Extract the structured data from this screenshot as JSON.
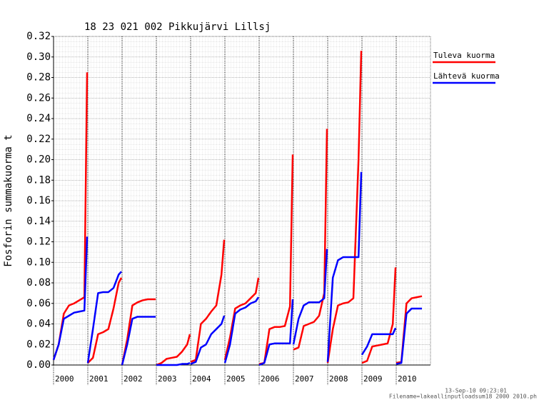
{
  "chart_data": {
    "type": "line",
    "title": "18 23 021 002 Pikkujärvi Lillsj",
    "y_label": "Fosforin summakuorma t",
    "footer": [
      "13-Sep-10 09:23:01",
      "Filename=lakeallinputloadsum18 2000 2010.ph"
    ],
    "legend_position": "right",
    "grid": true,
    "xlim": [
      2000,
      2011
    ],
    "xticks": [
      2000,
      2001,
      2002,
      2003,
      2004,
      2005,
      2006,
      2007,
      2008,
      2009,
      2010
    ],
    "ylim": [
      0,
      0.32
    ],
    "yticks": [
      {
        "value": 0,
        "label": "0.00"
      },
      {
        "value": 0.02,
        "label": "0.02"
      },
      {
        "value": 0.04,
        "label": "0.04"
      },
      {
        "value": 0.06,
        "label": "0.06"
      },
      {
        "value": 0.08,
        "label": "0.08"
      },
      {
        "value": 0.1,
        "label": "0.10"
      },
      {
        "value": 0.12,
        "label": "0.12"
      },
      {
        "value": 0.14,
        "label": "0.14"
      },
      {
        "value": 0.16,
        "label": "0.16"
      },
      {
        "value": 0.18,
        "label": "0.18"
      },
      {
        "value": 0.2,
        "label": "0.20"
      },
      {
        "value": 0.22,
        "label": "0.22"
      },
      {
        "value": 0.24,
        "label": "0.24"
      },
      {
        "value": 0.26,
        "label": "0.26"
      },
      {
        "value": 0.28,
        "label": "0.28"
      },
      {
        "value": 0.3,
        "label": "0.30"
      },
      {
        "value": 0.32,
        "label": "0.32"
      }
    ],
    "x": [
      2000,
      2000.15,
      2000.3,
      2000.45,
      2000.6,
      2000.75,
      2000.9,
      2000.98,
      2000.99,
      2001,
      2001.15,
      2001.3,
      2001.45,
      2001.6,
      2001.75,
      2001.9,
      2001.98,
      2001.99,
      2002,
      2002.15,
      2002.3,
      2002.45,
      2002.6,
      2002.75,
      2002.9,
      2002.98,
      2002.99,
      2003,
      2003.15,
      2003.3,
      2003.45,
      2003.6,
      2003.75,
      2003.9,
      2003.98,
      2003.99,
      2004,
      2004.15,
      2004.3,
      2004.45,
      2004.6,
      2004.75,
      2004.9,
      2004.98,
      2004.99,
      2005,
      2005.15,
      2005.3,
      2005.45,
      2005.6,
      2005.75,
      2005.9,
      2005.98,
      2005.99,
      2006,
      2006.15,
      2006.3,
      2006.45,
      2006.6,
      2006.75,
      2006.9,
      2006.98,
      2006.99,
      2007,
      2007.15,
      2007.3,
      2007.45,
      2007.6,
      2007.75,
      2007.9,
      2007.98,
      2007.99,
      2008,
      2008.15,
      2008.3,
      2008.45,
      2008.6,
      2008.75,
      2008.9,
      2008.98,
      2008.99,
      2009,
      2009.15,
      2009.3,
      2009.45,
      2009.6,
      2009.75,
      2009.9,
      2009.98,
      2009.99,
      2010,
      2010.15,
      2010.3,
      2010.45,
      2010.6,
      2010.75
    ],
    "series": [
      {
        "name": "Tuleva kuorma",
        "color": "#ff0000",
        "values": [
          0.005,
          0.02,
          0.05,
          0.058,
          0.06,
          0.063,
          0.066,
          0.285,
          null,
          0.002,
          0.007,
          0.03,
          0.032,
          0.035,
          0.055,
          0.08,
          0.085,
          null,
          0,
          0.025,
          0.058,
          0.061,
          0.063,
          0.064,
          0.064,
          0.064,
          null,
          0,
          0.002,
          0.006,
          0.007,
          0.008,
          0.013,
          0.02,
          0.03,
          null,
          0.003,
          0.005,
          0.04,
          0.045,
          0.052,
          0.058,
          0.088,
          0.122,
          null,
          0.005,
          0.027,
          0.055,
          0.058,
          0.06,
          0.065,
          0.07,
          0.085,
          null,
          0.001,
          0.002,
          0.035,
          0.037,
          0.037,
          0.038,
          0.057,
          0.205,
          null,
          0.015,
          0.017,
          0.038,
          0.04,
          0.042,
          0.048,
          0.07,
          0.23,
          null,
          0.002,
          0.035,
          0.058,
          0.06,
          0.061,
          0.065,
          0.2,
          0.306,
          null,
          0.002,
          0.004,
          0.018,
          0.019,
          0.02,
          0.021,
          0.04,
          0.095,
          null,
          0.002,
          0.003,
          0.06,
          0.065,
          0.066,
          0.067
        ]
      },
      {
        "name": "Lähtevä kuorma",
        "color": "#0000ff",
        "values": [
          0.005,
          0.02,
          0.045,
          0.048,
          0.051,
          0.052,
          0.053,
          0.125,
          null,
          0.002,
          0.035,
          0.07,
          0.071,
          0.071,
          0.075,
          0.088,
          0.091,
          null,
          0,
          0.02,
          0.045,
          0.047,
          0.047,
          0.047,
          0.047,
          0.047,
          null,
          0,
          0,
          0,
          0,
          0,
          0.001,
          0.001,
          0.002,
          null,
          0.001,
          0.003,
          0.017,
          0.02,
          0.03,
          0.035,
          0.04,
          0.048,
          null,
          0.002,
          0.02,
          0.05,
          0.054,
          0.056,
          0.06,
          0.062,
          0.066,
          null,
          0,
          0.002,
          0.02,
          0.021,
          0.021,
          0.021,
          0.021,
          0.064,
          null,
          0.02,
          0.045,
          0.058,
          0.061,
          0.061,
          0.061,
          0.065,
          0.113,
          null,
          0.003,
          0.085,
          0.102,
          0.105,
          0.105,
          0.105,
          0.105,
          0.188,
          null,
          0.01,
          0.018,
          0.03,
          0.03,
          0.03,
          0.03,
          0.03,
          0.036,
          null,
          0.001,
          0.002,
          0.05,
          0.055,
          0.055,
          0.055
        ]
      }
    ]
  }
}
